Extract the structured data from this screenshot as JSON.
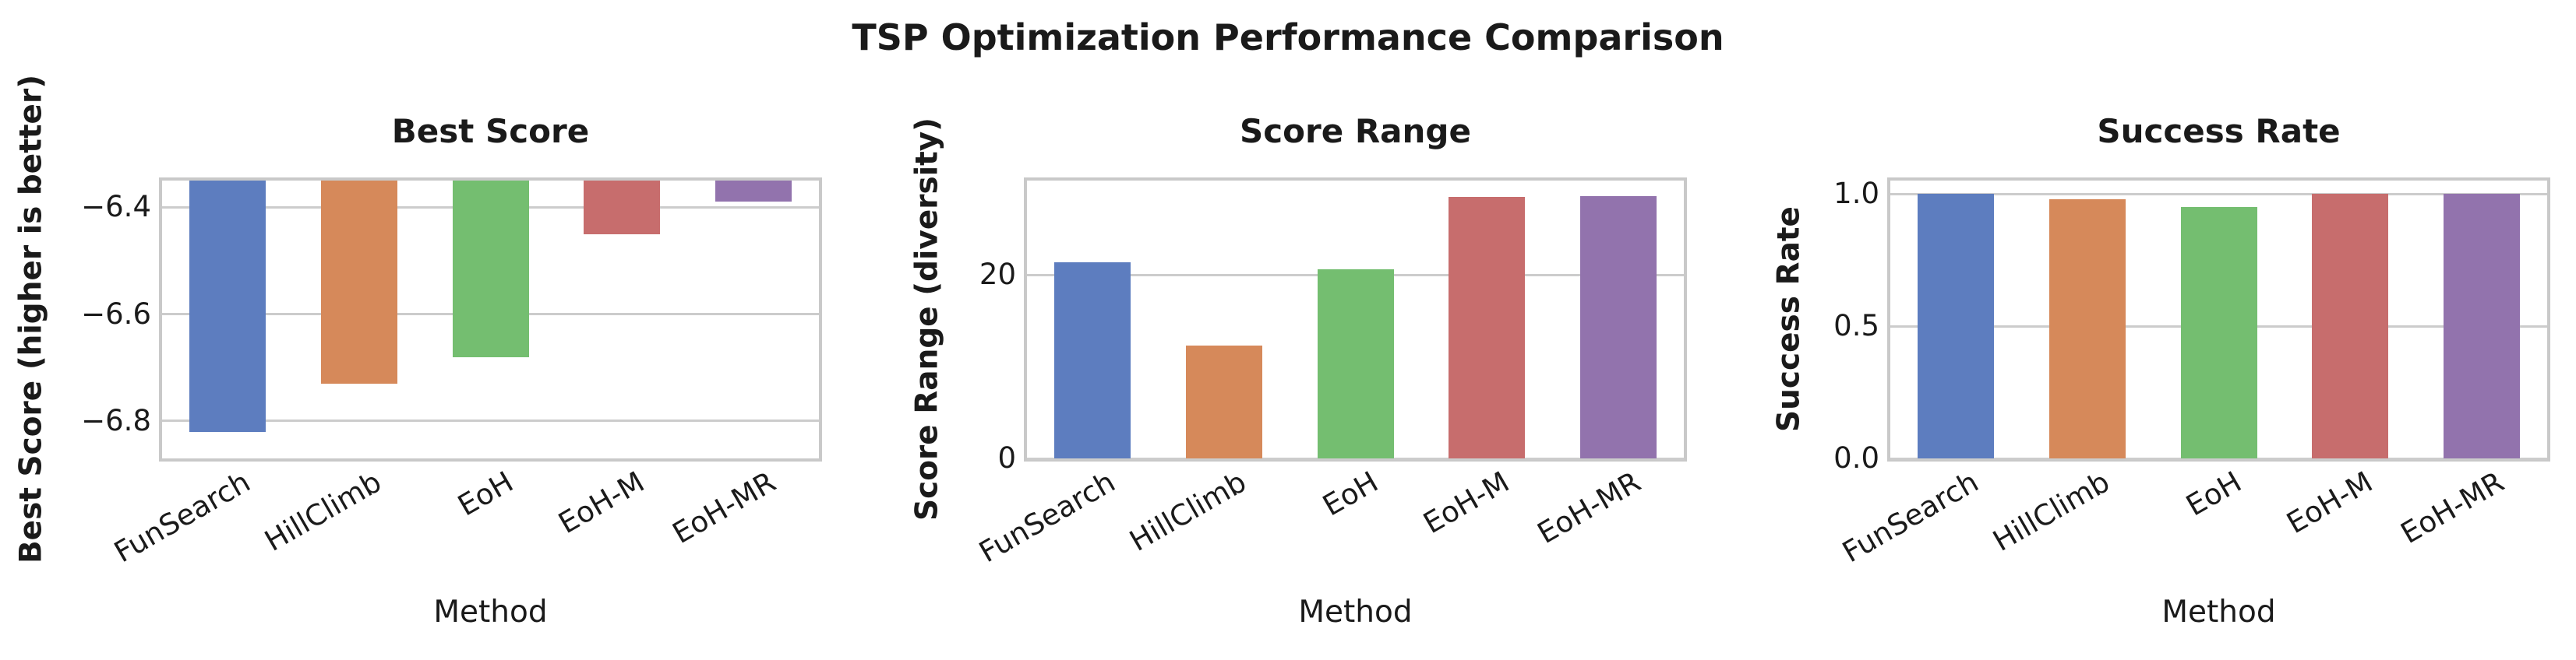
{
  "figure": {
    "title": "TSP Optimization Performance Comparison",
    "background": "#ffffff",
    "text_color": "#1a1a1a",
    "grid_color": "#cccccc",
    "spine_color": "#c9c9c9",
    "categories": [
      "FunSearch",
      "HillClimb",
      "EoH",
      "EoH-M",
      "EoH-MR"
    ],
    "bar_colors": [
      "#5d7dbf",
      "#d6895a",
      "#74be70",
      "#c76d6d",
      "#9273ad"
    ]
  },
  "chart_data": [
    {
      "type": "bar",
      "title": "Best Score",
      "xlabel": "Method",
      "ylabel": "Best Score (higher is better)",
      "categories": [
        "FunSearch",
        "HillClimb",
        "EoH",
        "EoH-M",
        "EoH-MR"
      ],
      "values": [
        -6.82,
        -6.73,
        -6.68,
        -6.45,
        -6.39
      ],
      "ylim": [
        -6.87,
        -6.35
      ],
      "yticks": [
        -6.4,
        -6.6,
        -6.8
      ],
      "ytick_labels": [
        "−6.4",
        "−6.6",
        "−6.8"
      ],
      "grid": true,
      "legend_position": "none",
      "bar_baseline": "axis-top"
    },
    {
      "type": "bar",
      "title": "Score Range",
      "xlabel": "Method",
      "ylabel": "Score Range (diversity)",
      "categories": [
        "FunSearch",
        "HillClimb",
        "EoH",
        "EoH-M",
        "EoH-MR"
      ],
      "values": [
        21.4,
        12.3,
        20.6,
        28.5,
        28.6
      ],
      "ylim": [
        0,
        30.3
      ],
      "yticks": [
        20,
        0
      ],
      "ytick_labels": [
        "20",
        "0"
      ],
      "grid": true,
      "legend_position": "none",
      "bar_baseline": "zero"
    },
    {
      "type": "bar",
      "title": "Success Rate",
      "xlabel": "Method",
      "ylabel": "Success Rate",
      "categories": [
        "FunSearch",
        "HillClimb",
        "EoH",
        "EoH-M",
        "EoH-MR"
      ],
      "values": [
        1.0,
        0.98,
        0.95,
        1.0,
        1.0
      ],
      "ylim": [
        0,
        1.05
      ],
      "yticks": [
        1.0,
        0.5,
        0.0
      ],
      "ytick_labels": [
        "1.0",
        "0.5",
        "0.0"
      ],
      "grid": true,
      "legend_position": "none",
      "bar_baseline": "zero"
    }
  ]
}
